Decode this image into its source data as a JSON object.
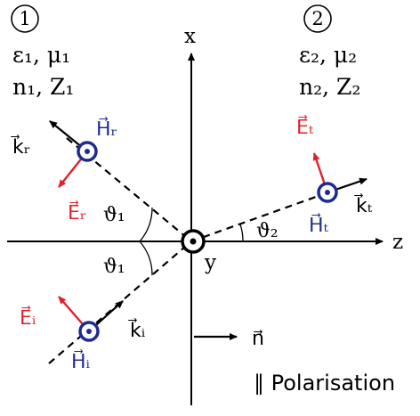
{
  "regions": {
    "left": {
      "number": "1",
      "material": "ε₁, μ₁",
      "index": "n₁, Z₁"
    },
    "right": {
      "number": "2",
      "material": "ε₂, μ₂",
      "index": "n₂, Z₂"
    }
  },
  "axes": {
    "x": "x",
    "z": "z",
    "y": "y"
  },
  "angles": {
    "incident": "ϑ₁",
    "reflected": "ϑ₁",
    "transmitted": "ϑ₂"
  },
  "incident": {
    "k": "k⃗ᵢ",
    "E": "E⃗ᵢ",
    "H": "H⃗ᵢ"
  },
  "reflected": {
    "k": "k⃗ᵣ",
    "E": "E⃗ᵣ",
    "H": "H⃗ᵣ"
  },
  "transmitted": {
    "k": "k⃗ₜ",
    "E": "E⃗ₜ",
    "H": "H⃗ₜ"
  },
  "normal": "n⃗",
  "caption": "∥ Polarisation",
  "colors": {
    "E": "#e0202a",
    "H": "#1f2a8f",
    "line": "#000000"
  }
}
